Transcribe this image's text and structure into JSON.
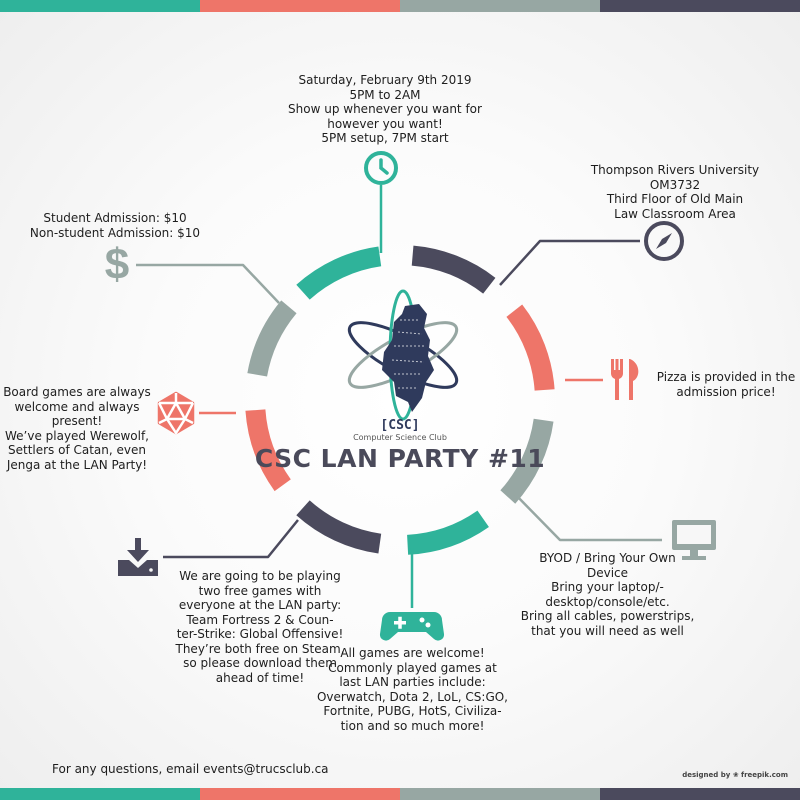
{
  "colors": {
    "teal": "#2fb39a",
    "salmon": "#ee7569",
    "gray": "#97a7a3",
    "navy": "#4b4a5d",
    "text": "#1e1e1e"
  },
  "icons": [
    "clock-icon",
    "compass-icon",
    "dollar-icon",
    "fork-knife-icon",
    "dice-icon",
    "monitor-icon",
    "download-icon",
    "gamepad-icon",
    "atom-logo-icon"
  ],
  "logo": {
    "abbr": "[CSC]",
    "name": "Computer Science Club"
  },
  "title": "CSC LAN PARTY #11",
  "time": {
    "lines": [
      "Saturday, February 9th 2019",
      "5PM to 2AM",
      "Show up whenever you want for",
      "however you want!",
      "5PM setup, 7PM start"
    ]
  },
  "location": {
    "lines": [
      "Thompson Rivers University",
      "OM3732",
      "Third Floor of Old Main",
      "Law Classroom Area"
    ]
  },
  "admission": {
    "lines": [
      "Student Admission: $10",
      "Non-student Admission: $10"
    ]
  },
  "food": {
    "lines": [
      "Pizza is provided in the",
      "admission price!"
    ]
  },
  "boardgames": {
    "lines": [
      "Board games are always",
      "welcome and always",
      "present!",
      "We’ve played Werewolf,",
      "Settlers of Catan, even",
      "Jenga at the LAN Party!"
    ]
  },
  "byod": {
    "lines": [
      "BYOD / Bring Your Own",
      "Device",
      "Bring your laptop/-",
      "desktop/console/etc.",
      "Bring all cables, powerstrips,",
      "that you will need as well"
    ]
  },
  "downloads": {
    "lines": [
      "We are going to be playing",
      "two free games with",
      "everyone at the LAN party:",
      "Team Fortress 2 & Coun-",
      "ter-Strike: Global Offensive!",
      "They’re both free on Steam,",
      "so please download them",
      "ahead of time!"
    ]
  },
  "games": {
    "lines": [
      "All games are welcome!",
      "Commonly played games at",
      "last LAN parties include:",
      "Overwatch, Dota 2, LoL, CS:GO,",
      "Fortnite, PUBG, HotS, Civiliza-",
      "tion and so much more!"
    ]
  },
  "footer": "For any questions, email events@trucsclub.ca",
  "credit": "designed by ❀ freepik.com"
}
